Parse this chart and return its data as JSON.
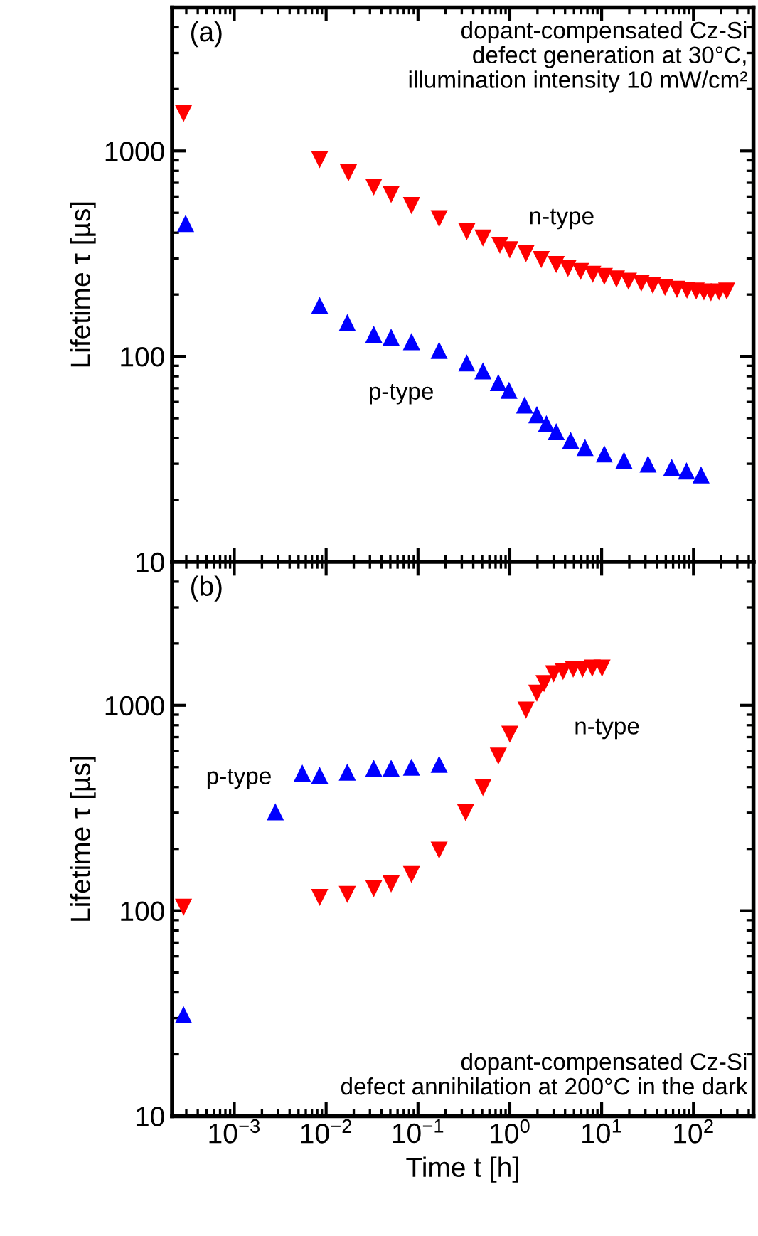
{
  "chart_data": [
    {
      "type": "scatter",
      "ylabel": "Lifetime τ [µs]",
      "log": "xy",
      "grid": false,
      "legend": false,
      "tick_labels": "y",
      "xlim": [
        0.00021,
        450
      ],
      "ylim": [
        10,
        5000
      ],
      "xticks": [
        {
          "value": 0.001,
          "label": null
        },
        {
          "value": 0.01,
          "label": null
        },
        {
          "value": 0.1,
          "label": null
        },
        {
          "value": 1,
          "label": null
        },
        {
          "value": 10,
          "label": null
        },
        {
          "value": 100,
          "label": null
        }
      ],
      "yticks": [
        10,
        100,
        1000
      ],
      "annotations": [
        "(a)",
        "dopant-compensated Cz-Si\ndefect generation at 30°C,\nillumination intensity 10 mW/cm²"
      ],
      "series": [
        {
          "name": "n-type",
          "color": "#ff0000",
          "marker": "triangle-down",
          "x": [
            0.00028,
            0.0085,
            0.0175,
            0.033,
            0.051,
            0.085,
            0.17,
            0.34,
            0.51,
            0.78,
            1.0,
            1.5,
            2.2,
            3.2,
            4.3,
            5.9,
            8.0,
            10.7,
            14.5,
            19.6,
            27,
            36,
            49,
            66,
            85,
            107,
            130,
            155,
            190,
            230
          ],
          "values": [
            1520,
            907,
            783,
            667,
            614,
            542,
            468,
            405,
            377,
            347,
            330,
            316,
            296,
            280,
            268,
            259,
            251,
            245,
            238,
            232,
            227,
            222,
            217,
            212,
            210,
            208,
            206,
            204,
            206,
            208
          ]
        },
        {
          "name": "p-type",
          "color": "#0000ff",
          "marker": "triangle",
          "x": [
            0.000295,
            0.0085,
            0.017,
            0.033,
            0.051,
            0.085,
            0.17,
            0.34,
            0.51,
            0.75,
            0.98,
            1.45,
            1.97,
            2.5,
            3.2,
            4.6,
            6.6,
            10.7,
            17.5,
            32,
            58,
            84,
            121
          ],
          "values": [
            444,
            177,
            146,
            128,
            124,
            118,
            107,
            93,
            85,
            74.5,
            68.4,
            58,
            52,
            47,
            43,
            39,
            36,
            33.5,
            31.2,
            29.9,
            28.8,
            27.7,
            26.5
          ]
        }
      ]
    },
    {
      "type": "scatter",
      "xlabel": "Time t [h]",
      "ylabel": "Lifetime τ [µs]",
      "log": "xy",
      "grid": false,
      "legend": false,
      "xlim": [
        0.00021,
        450
      ],
      "ylim": [
        10,
        5000
      ],
      "xticks": [
        {
          "value": 0.001,
          "label": "10$^{−3}$"
        },
        {
          "value": 0.01,
          "label": "10$^{−2}$"
        },
        {
          "value": 0.1,
          "label": "10$^{−1}$"
        },
        {
          "value": 1,
          "label": "10$^{0}$"
        },
        {
          "value": 10,
          "label": "10$^{1}$"
        },
        {
          "value": 100,
          "label": "10$^{2}$"
        }
      ],
      "yticks": [
        10,
        100,
        1000
      ],
      "annotations": [
        "(b)",
        "dopant-compensated Cz-Si\ndefect annihilation at 200°C in the dark"
      ],
      "series": [
        {
          "name": "p-type",
          "color": "#0000ff",
          "marker": "triangle",
          "x": [
            0.00028,
            0.0028,
            0.0055,
            0.0085,
            0.017,
            0.033,
            0.051,
            0.085,
            0.17
          ],
          "values": [
            31.2,
            303,
            468,
            456,
            473,
            494,
            494,
            500,
            516
          ]
        },
        {
          "name": "n-type",
          "color": "#ff0000",
          "marker": "triangle-down",
          "x": [
            0.00028,
            0.0085,
            0.017,
            0.033,
            0.051,
            0.085,
            0.17,
            0.33,
            0.51,
            0.75,
            1.0,
            1.5,
            1.97,
            2.36,
            3.0,
            3.8,
            4.9,
            6.2,
            7.9,
            10.1
          ],
          "values": [
            104,
            116,
            120,
            128,
            135,
            150,
            197,
            300,
            398,
            566,
            723,
            947,
            1145,
            1276,
            1422,
            1462,
            1500,
            1500,
            1516,
            1516
          ]
        }
      ]
    }
  ]
}
